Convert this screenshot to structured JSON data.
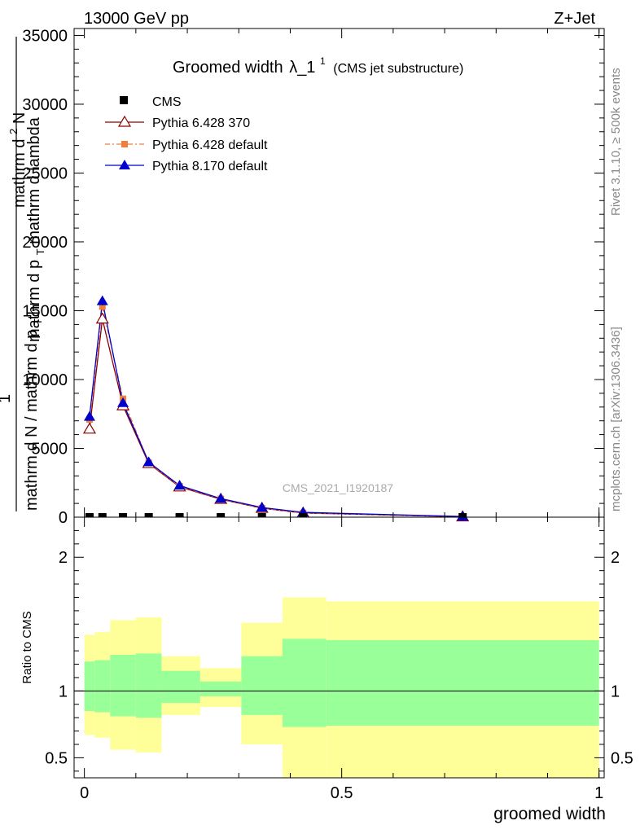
{
  "header": {
    "left": "13000 GeV pp",
    "right": "Z+Jet"
  },
  "side": {
    "rivet": "Rivet 3.1.10, ≥ 500k events",
    "mcplots": "mcplots.cern.ch [arXiv:1306.3436]"
  },
  "colors": {
    "cms": "#000000",
    "py6_370": "#8b0000",
    "py6_default": "#f07f3c",
    "py8_default": "#0000cc",
    "band_inner": "#99ff99",
    "band_outer": "#ffff99"
  },
  "chart_data": [
    {
      "type": "line",
      "title_main": "Groomed width",
      "title_lambda": "λ_1",
      "title_sup": "1",
      "title_sub": "(CMS jet substructure)",
      "ylabel_num": "mathrm d",
      "ylabel_num_sup": "2",
      "ylabel_num_tail": "N",
      "ylabel_den": "mathrm d p",
      "ylabel_den_sub": "T",
      "ylabel_den_tail": " mathrm d lambda",
      "ylabel_left_one": "1",
      "ylabel_left_den": "mathrm d N / mathrm d p",
      "ylabel_left_den_sub": "T",
      "watermark": "CMS_2021_I1920187",
      "xlim": [
        -0.02,
        1.01
      ],
      "ylim": [
        0,
        35500
      ],
      "yticks": [
        {
          "v": 0,
          "label": "0"
        },
        {
          "v": 5000,
          "label": "5000"
        },
        {
          "v": 10000,
          "label": "10000"
        },
        {
          "v": 15000,
          "label": "15000"
        },
        {
          "v": 20000,
          "label": "20000"
        },
        {
          "v": 25000,
          "label": "25000"
        },
        {
          "v": 30000,
          "label": "30000"
        },
        {
          "v": 35000,
          "label": "35000"
        }
      ],
      "legend": [
        {
          "key": "cms",
          "label": "CMS"
        },
        {
          "key": "py6_370",
          "label": "Pythia 6.428 370"
        },
        {
          "key": "py6_default",
          "label": "Pythia 6.428 default"
        },
        {
          "key": "py8_default",
          "label": "Pythia 8.170 default"
        }
      ],
      "series": [
        {
          "key": "cms",
          "name": "CMS",
          "x": [
            0.01,
            0.035,
            0.075,
            0.125,
            0.185,
            0.265,
            0.345,
            0.425,
            0.735
          ],
          "y": [
            0,
            0,
            0,
            0,
            0,
            0,
            0,
            0,
            0
          ]
        },
        {
          "key": "py6_370",
          "name": "Pythia 6.428 370",
          "x": [
            0.01,
            0.035,
            0.075,
            0.125,
            0.185,
            0.265,
            0.345,
            0.425,
            0.735
          ],
          "y": [
            6400,
            14400,
            8100,
            3900,
            2200,
            1300,
            650,
            300,
            30
          ]
        },
        {
          "key": "py6_default",
          "name": "Pythia 6.428 default",
          "x": [
            0.01,
            0.035,
            0.075,
            0.125,
            0.185,
            0.265,
            0.345,
            0.425,
            0.735
          ],
          "y": [
            7100,
            15300,
            8600,
            3950,
            2250,
            1330,
            660,
            310,
            40
          ]
        },
        {
          "key": "py8_default",
          "name": "Pythia 8.170 default",
          "x": [
            0.01,
            0.035,
            0.075,
            0.125,
            0.185,
            0.265,
            0.345,
            0.425,
            0.735
          ],
          "y": [
            7300,
            15700,
            8300,
            4000,
            2300,
            1350,
            700,
            350,
            50
          ]
        }
      ]
    },
    {
      "type": "area",
      "ylabel": "Ratio to CMS",
      "xlabel": "groomed width",
      "xlim": [
        -0.02,
        1.01
      ],
      "ylim": [
        0.35,
        2.3
      ],
      "yticks": [
        {
          "v": 0.5,
          "label": "0.5"
        },
        {
          "v": 1,
          "label": "1"
        },
        {
          "v": 2,
          "label": "2"
        }
      ],
      "xticks": [
        {
          "v": 0,
          "label": "0"
        },
        {
          "v": 0.5,
          "label": "0.5"
        },
        {
          "v": 1,
          "label": "1"
        }
      ],
      "reference": 1,
      "bins": [
        {
          "x0": 0.0,
          "x1": 0.02,
          "in_lo": 0.85,
          "in_hi": 1.22,
          "out_lo": 0.67,
          "out_hi": 1.42
        },
        {
          "x0": 0.02,
          "x1": 0.05,
          "in_lo": 0.84,
          "in_hi": 1.23,
          "out_lo": 0.65,
          "out_hi": 1.44
        },
        {
          "x0": 0.05,
          "x1": 0.1,
          "in_lo": 0.81,
          "in_hi": 1.27,
          "out_lo": 0.56,
          "out_hi": 1.53
        },
        {
          "x0": 0.1,
          "x1": 0.15,
          "in_lo": 0.8,
          "in_hi": 1.28,
          "out_lo": 0.54,
          "out_hi": 1.55
        },
        {
          "x0": 0.15,
          "x1": 0.225,
          "in_lo": 0.91,
          "in_hi": 1.15,
          "out_lo": 0.82,
          "out_hi": 1.26
        },
        {
          "x0": 0.225,
          "x1": 0.305,
          "in_lo": 0.96,
          "in_hi": 1.07,
          "out_lo": 0.88,
          "out_hi": 1.17
        },
        {
          "x0": 0.305,
          "x1": 0.385,
          "in_lo": 0.82,
          "in_hi": 1.26,
          "out_lo": 0.6,
          "out_hi": 1.51
        },
        {
          "x0": 0.385,
          "x1": 0.47,
          "in_lo": 0.73,
          "in_hi": 1.39,
          "out_lo": 0.35,
          "out_hi": 1.7
        },
        {
          "x0": 0.47,
          "x1": 1.0,
          "in_lo": 0.74,
          "in_hi": 1.38,
          "out_lo": 0.35,
          "out_hi": 1.67
        }
      ]
    }
  ]
}
